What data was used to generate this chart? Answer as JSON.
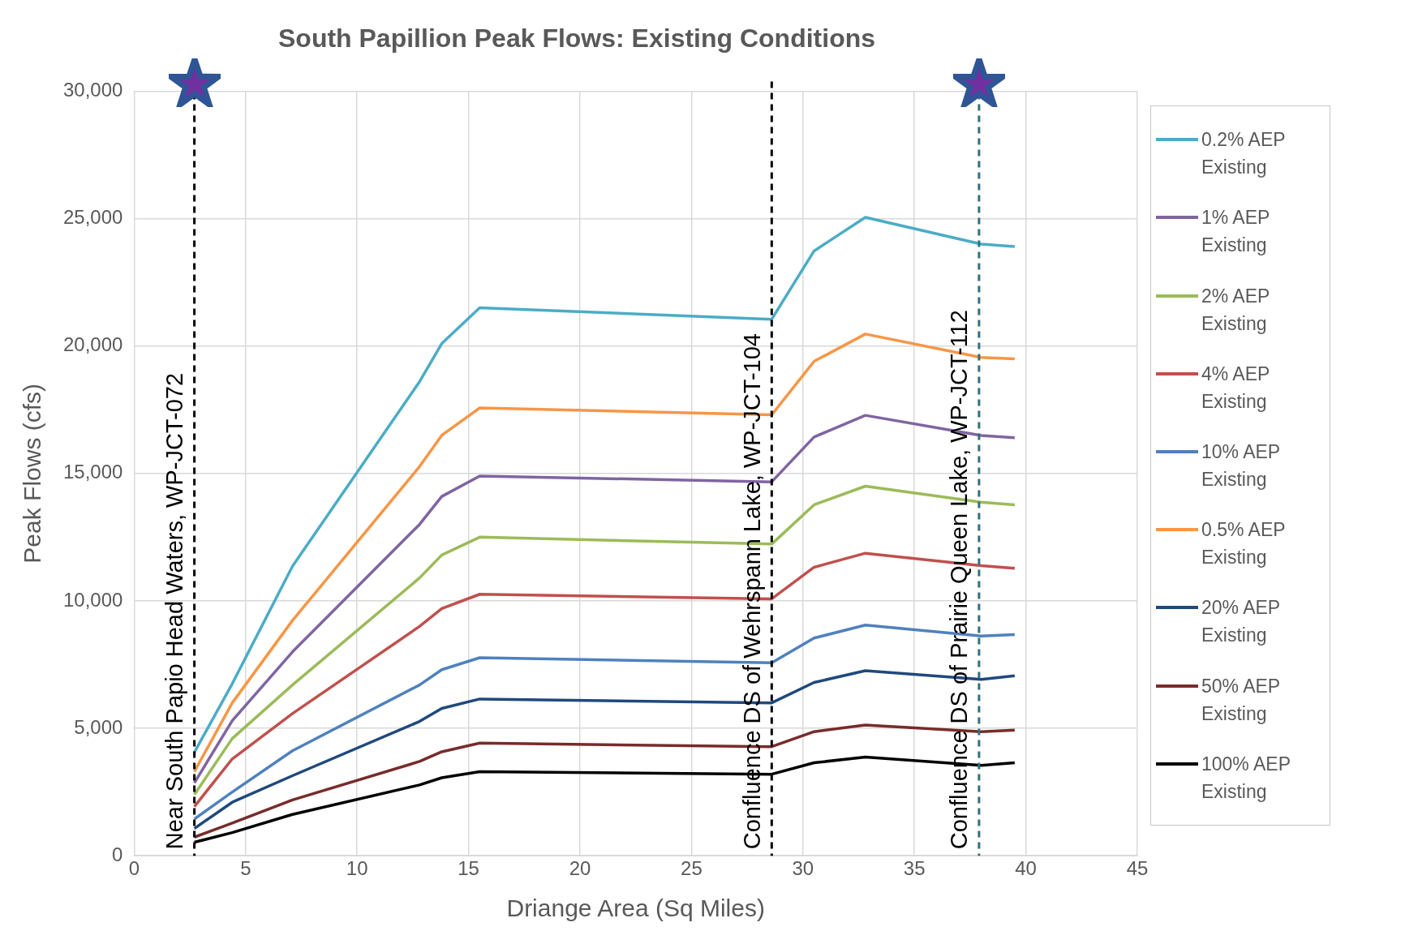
{
  "chart_data": {
    "type": "line",
    "title": "South Papillion Peak Flows: Existing Conditions",
    "xlabel": "Driange Area (Sq Miles)",
    "ylabel": "Peak Flows (cfs)",
    "x": [
      2.7,
      4.4,
      7.1,
      12.8,
      13.8,
      15.5,
      28.6,
      30.5,
      32.8,
      38,
      39.5
    ],
    "xlim": [
      0,
      45
    ],
    "xticks": [
      0,
      5,
      10,
      15,
      20,
      25,
      30,
      35,
      40,
      45
    ],
    "ylim": [
      0,
      30000
    ],
    "yticks": [
      {
        "value": 0,
        "label": "0"
      },
      {
        "value": 5000,
        "label": "5,000"
      },
      {
        "value": 10000,
        "label": "10,000"
      },
      {
        "value": 15000,
        "label": "15,000"
      },
      {
        "value": 20000,
        "label": "20,000"
      },
      {
        "value": 25000,
        "label": "25,000"
      },
      {
        "value": 30000,
        "label": "30,000"
      }
    ],
    "grid": true,
    "legend": "right",
    "marker": "none",
    "line_style": "solid",
    "series": [
      {
        "name": "0.2% AEP Existing",
        "color": "#4bacc6",
        "values": [
          4060,
          6750,
          11360,
          18600,
          20100,
          21500,
          21050,
          23730,
          25050,
          24000,
          23900
        ]
      },
      {
        "name": "1% AEP Existing",
        "color": "#8064a2",
        "values": [
          2860,
          5300,
          8000,
          13000,
          14100,
          14900,
          14670,
          16430,
          17280,
          16490,
          16400
        ]
      },
      {
        "name": "2% AEP Existing",
        "color": "#9bbb59",
        "values": [
          2400,
          4600,
          6700,
          10900,
          11800,
          12500,
          12230,
          13770,
          14500,
          13870,
          13770
        ]
      },
      {
        "name": "4% AEP Existing",
        "color": "#c0504d",
        "values": [
          1930,
          3800,
          5580,
          9000,
          9700,
          10260,
          10080,
          11320,
          11870,
          11380,
          11280
        ]
      },
      {
        "name": "10% AEP Existing",
        "color": "#4f81bd",
        "values": [
          1440,
          2500,
          4120,
          6700,
          7300,
          7770,
          7570,
          8540,
          9050,
          8620,
          8680
        ]
      },
      {
        "name": "0.5% AEP Existing",
        "color": "#f79646",
        "values": [
          3300,
          6000,
          9230,
          15270,
          16500,
          17570,
          17300,
          19400,
          20470,
          19550,
          19500
        ]
      },
      {
        "name": "20% AEP Existing",
        "color": "#1f497d",
        "values": [
          1070,
          2100,
          3140,
          5270,
          5780,
          6150,
          6000,
          6800,
          7260,
          6920,
          7060
        ]
      },
      {
        "name": "50% AEP Existing",
        "color": "#772c2a",
        "values": [
          730,
          1280,
          2190,
          3700,
          4080,
          4420,
          4280,
          4870,
          5130,
          4870,
          4930
        ]
      },
      {
        "name": "100% AEP Existing",
        "color": "#000000",
        "values": [
          530,
          910,
          1620,
          2780,
          3060,
          3300,
          3200,
          3650,
          3870,
          3550,
          3650
        ]
      }
    ],
    "ref_lines": [
      {
        "axis": "x",
        "value": 2.7,
        "label": "Near South Papio Head Waters, WP-JCT-072",
        "color": "#000000",
        "line_style": "dashed"
      },
      {
        "axis": "x",
        "value": 28.6,
        "label": "Confluence DS of Wehrspann Lake, WP-JCT-104",
        "color": "#000000",
        "line_style": "dashed"
      },
      {
        "axis": "x",
        "value": 37.9,
        "label": "Confluence DS of Prairie Queen Lake, WP-JCT-112",
        "color": "#31707f",
        "line_style": "dashed"
      }
    ]
  }
}
